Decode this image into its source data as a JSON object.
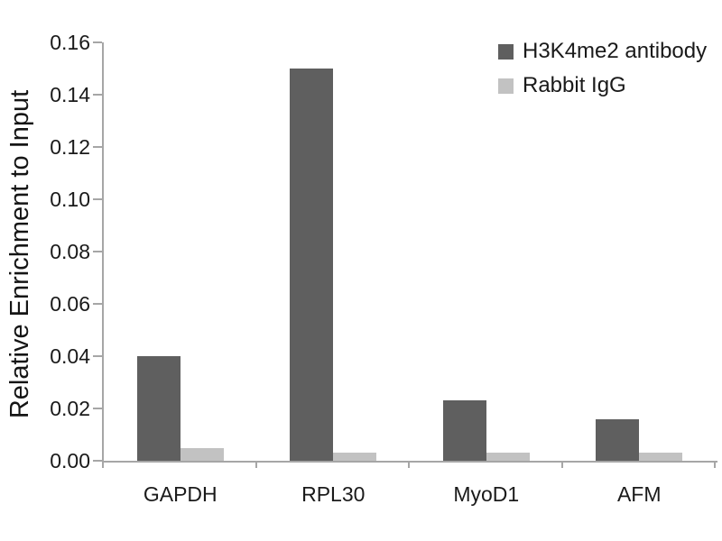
{
  "chart_data": {
    "type": "bar",
    "title": "",
    "xlabel": "",
    "ylabel": "Relative Enrichment to Input",
    "categories": [
      "GAPDH",
      "RPL30",
      "MyoD1",
      "AFM"
    ],
    "series": [
      {
        "name": "H3K4me2 antibody",
        "color": "#5f5f5f",
        "values": [
          0.04,
          0.15,
          0.023,
          0.016
        ]
      },
      {
        "name": "Rabbit IgG",
        "color": "#c2c2c2",
        "values": [
          0.005,
          0.003,
          0.003,
          0.003
        ]
      }
    ],
    "ylim": [
      0,
      0.16
    ],
    "ytick_step": 0.02,
    "ytick_labels": [
      "0.00",
      "0.02",
      "0.04",
      "0.06",
      "0.08",
      "0.10",
      "0.12",
      "0.14",
      "0.16"
    ],
    "grid": false,
    "legend_position": "top-right",
    "axis_color": "#a6a6a6",
    "text_color": "#1a1a1a",
    "background_color": "#ffffff"
  }
}
